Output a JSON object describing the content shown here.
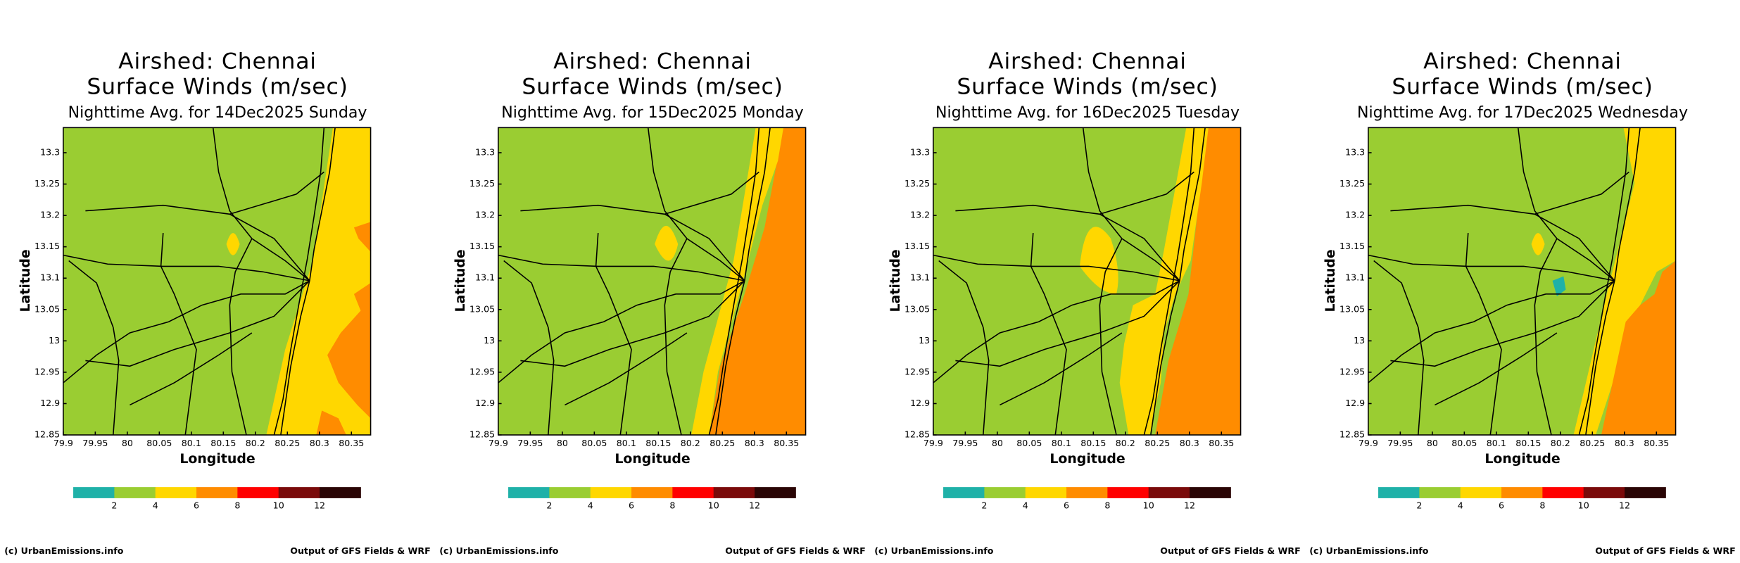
{
  "panels": [
    {
      "title": [
        "Airshed: Chennai",
        "Surface Winds (m/sec)"
      ],
      "subtitle": "Nighttime Avg. for 14Dec2025 Sunday"
    },
    {
      "title": [
        "Airshed: Chennai",
        "Surface Winds (m/sec)"
      ],
      "subtitle": "Nighttime Avg. for 15Dec2025 Monday"
    },
    {
      "title": [
        "Airshed: Chennai",
        "Surface Winds (m/sec)"
      ],
      "subtitle": "Nighttime Avg. for 16Dec2025 Tuesday"
    },
    {
      "title": [
        "Airshed: Chennai",
        "Surface Winds (m/sec)"
      ],
      "subtitle": "Nighttime Avg. for 17Dec2025 Wednesday"
    }
  ],
  "axes": {
    "xlabel": "Longitude",
    "ylabel": "Latitude",
    "xlim": [
      79.9,
      80.38
    ],
    "ylim": [
      12.85,
      13.34
    ],
    "xticks": [
      79.9,
      79.95,
      80,
      80.05,
      80.1,
      80.15,
      80.2,
      80.25,
      80.3,
      80.35
    ],
    "yticks": [
      12.85,
      12.9,
      12.95,
      13,
      13.05,
      13.1,
      13.15,
      13.2,
      13.25,
      13.3
    ]
  },
  "colorbar": {
    "lim": [
      0,
      14
    ],
    "ticks": [
      2,
      4,
      6,
      8,
      10,
      12
    ],
    "colors": [
      "#1fb1a8",
      "#9acd32",
      "#ffd700",
      "#ff8c00",
      "#ff0000",
      "#7a0a0a",
      "#2a0505"
    ]
  },
  "footer": {
    "left": "(c) UrbanEmissions.info",
    "right": "Output of GFS Fields & WRF"
  }
}
